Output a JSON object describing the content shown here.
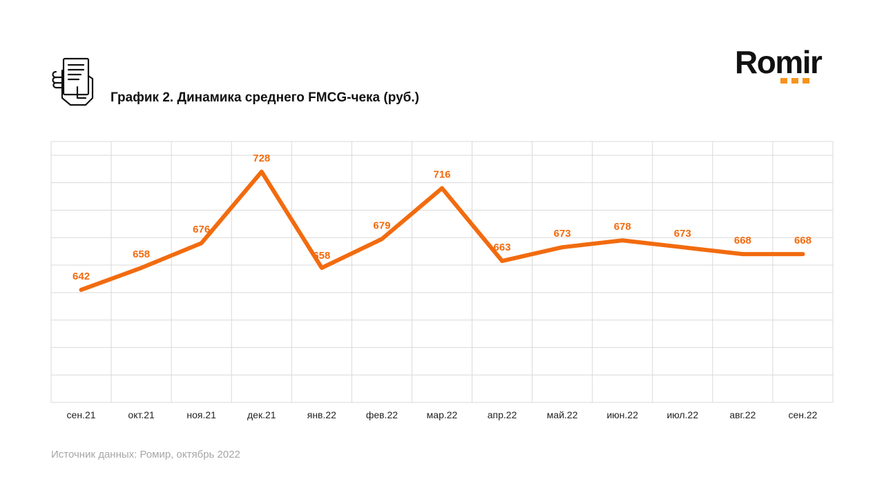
{
  "header": {
    "title": "График 2. Динамика среднего FMCG-чека (руб.)",
    "icon": "receipt-hand-icon"
  },
  "logo": {
    "text": "Romir"
  },
  "footer": {
    "source": "Источник данных: Ромир, октябрь 2022"
  },
  "colors": {
    "series": "#f26b0f",
    "grid": "#d9d9d9",
    "axis_label": "#222222",
    "logo_accent": "#f7941d"
  },
  "chart_data": {
    "type": "line",
    "title": "График 2. Динамика среднего FMCG-чека (руб.)",
    "categories": [
      "сен.21",
      "окт.21",
      "ноя.21",
      "дек.21",
      "янв.22",
      "фев.22",
      "мар.22",
      "апр.22",
      "май.22",
      "июн.22",
      "июл.22",
      "авг.22",
      "сен.22"
    ],
    "series": [
      {
        "values": [
          642,
          658,
          676,
          728,
          658,
          679,
          716,
          663,
          673,
          678,
          673,
          668,
          668
        ]
      }
    ],
    "ylim": [
      560,
      750
    ],
    "y_gridlines": [
      560,
      580,
      600,
      620,
      640,
      660,
      680,
      700,
      720,
      740,
      750
    ],
    "vertical_gridlines": true,
    "y_tick_labels_shown": false,
    "data_labels": true,
    "legend": "none"
  }
}
